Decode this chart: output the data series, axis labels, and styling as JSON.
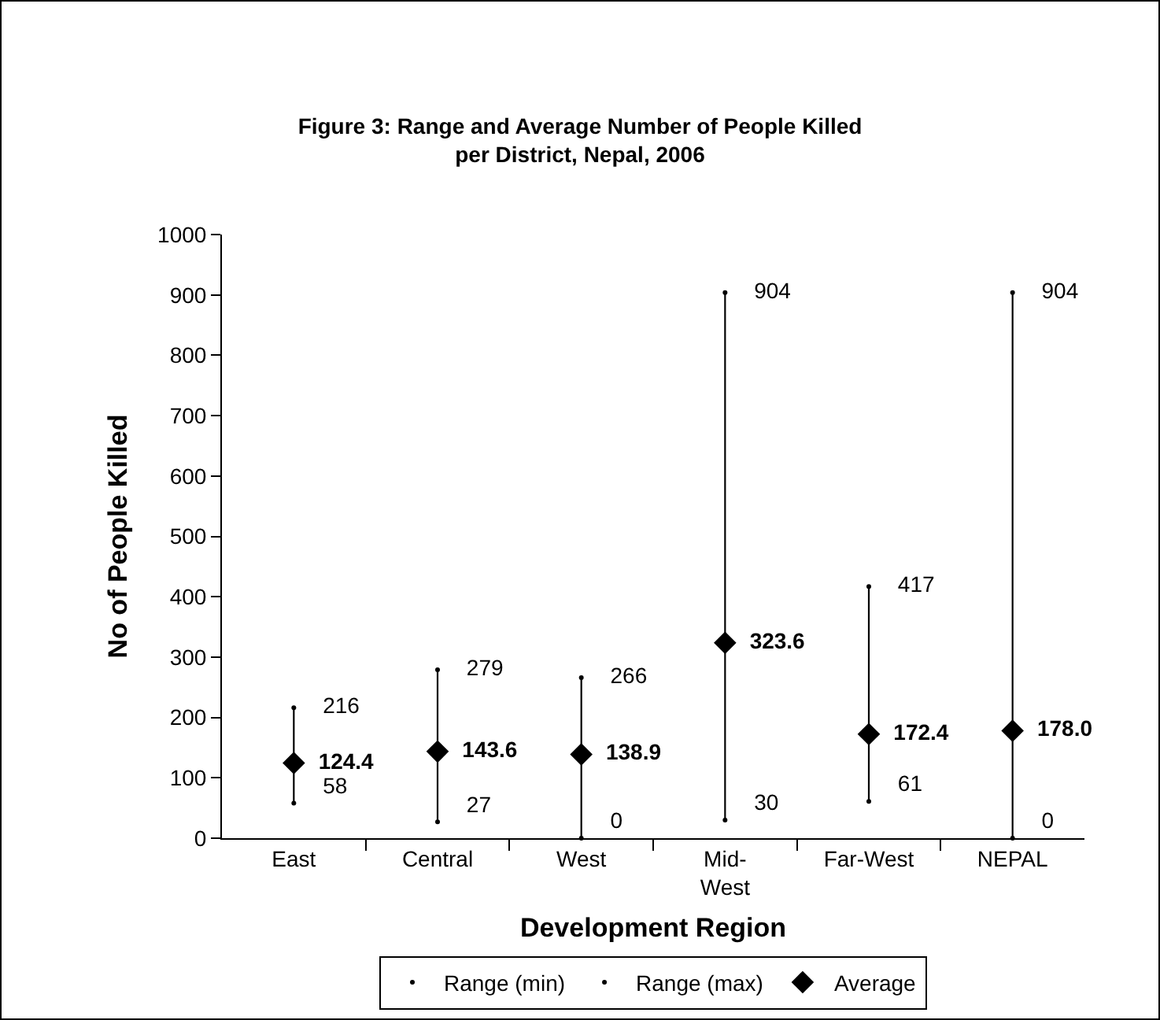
{
  "chart_data": {
    "type": "scatter",
    "title": "Figure 3: Range and Average Number of People Killed\nper District, Nepal, 2006",
    "xlabel": "Development Region",
    "ylabel": "No of People Killed",
    "categories": [
      "East",
      "Central",
      "West",
      "Mid-\nWest",
      "Far-West",
      "NEPAL"
    ],
    "series": [
      {
        "name": "Range (min)",
        "color": "#000000",
        "marker": "circle",
        "values": [
          58,
          27,
          0,
          30,
          61,
          0
        ],
        "value_labels": [
          "58",
          "27",
          "0",
          "30",
          "61",
          "0"
        ]
      },
      {
        "name": "Range (max)",
        "color": "#000000",
        "marker": "circle",
        "values": [
          216,
          279,
          266,
          904,
          417,
          904
        ],
        "value_labels": [
          "216",
          "279",
          "266",
          "904",
          "417",
          "904"
        ]
      },
      {
        "name": "Average",
        "color": "#000000",
        "marker": "diamond",
        "values": [
          124.4,
          143.6,
          138.9,
          323.6,
          172.4,
          178.0
        ],
        "value_labels": [
          "124.4",
          "143.6",
          "138.9",
          "323.6",
          "172.4",
          "178.0"
        ]
      },
      {
        "type": "bar",
        "color": "#000000",
        "base": [
          58,
          27,
          0,
          30,
          61,
          0
        ],
        "values": [
          158,
          252,
          266,
          874,
          356,
          904
        ]
      }
    ],
    "ylim": [
      0,
      1000
    ],
    "yticks": [
      0,
      100,
      200,
      300,
      400,
      500,
      600,
      700,
      800,
      900,
      1000
    ],
    "grid": false,
    "legend": "bottom"
  }
}
